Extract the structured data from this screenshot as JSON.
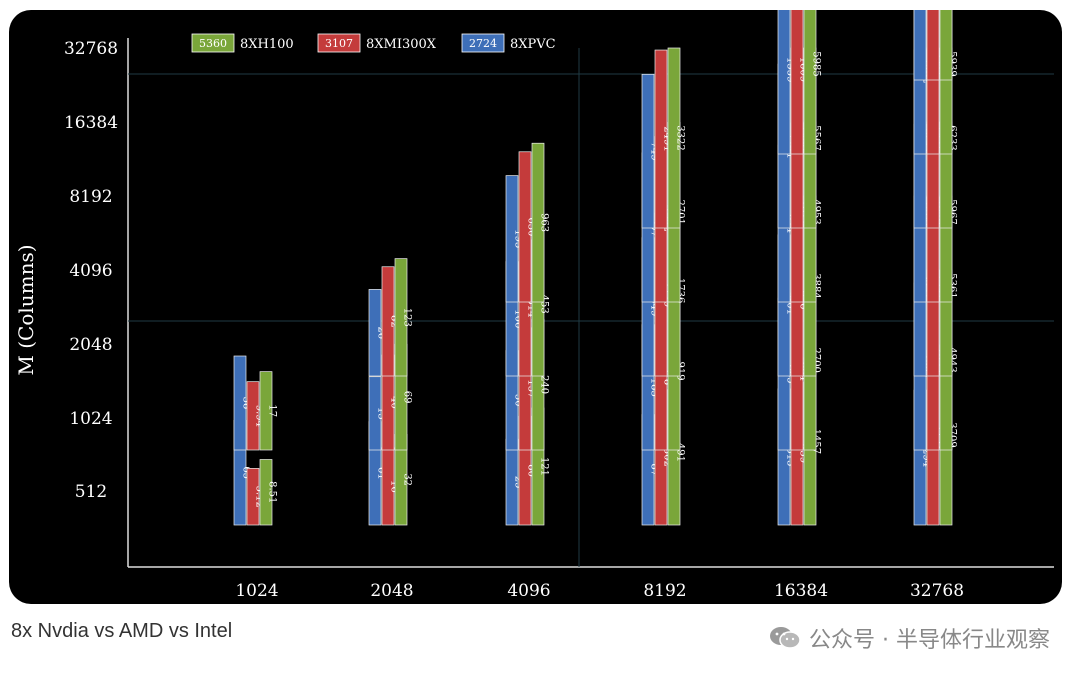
{
  "caption": "8x Nvdia vs AMD vs Intel",
  "watermark": "公众号 · 半导体行业观察",
  "colors": {
    "h100": "#7aa63a",
    "mi300x": "#c43b3b",
    "pvc": "#3e6fb8",
    "background": "#000000"
  },
  "chart_data": {
    "type": "bar",
    "xlabel": "",
    "ylabel": "M (Columns)",
    "x_ticks": [
      "1024",
      "2048",
      "4096",
      "8192",
      "16384",
      "32768"
    ],
    "y_ticks": [
      "512",
      "1024",
      "2048",
      "4096",
      "8192",
      "16384",
      "32768"
    ],
    "y_scale": "log2",
    "legend": [
      {
        "key": "h100",
        "name": "8XH100",
        "value": "5360"
      },
      {
        "key": "mi300x",
        "name": "8XMI300X",
        "value": "3107"
      },
      {
        "key": "pvc",
        "name": "8XPVC",
        "value": "2724"
      }
    ],
    "cells": [
      {
        "x": "1024",
        "y": "512",
        "pvc": "65",
        "mi300x": "5.12",
        "h100": "8.51"
      },
      {
        "x": "1024",
        "y": "1024",
        "pvc": "38",
        "mi300x": "9.94",
        "h100": "17"
      },
      {
        "x": "2048",
        "y": "512",
        "pvc": "61",
        "mi300x": "16",
        "h100": "32"
      },
      {
        "x": "2048",
        "y": "1024",
        "pvc": "13",
        "mi300x": "40",
        "h100": "69"
      },
      {
        "x": "2048",
        "y": "2048",
        "pvc": "26",
        "mi300x": "82",
        "h100": "123"
      },
      {
        "x": "4096",
        "y": "512",
        "pvc": "25",
        "mi300x": "80",
        "h100": "121"
      },
      {
        "x": "4096",
        "y": "1024",
        "pvc": "50",
        "mi300x": "157",
        "h100": "240"
      },
      {
        "x": "4096",
        "y": "2048",
        "pvc": "106",
        "mi300x": "314",
        "h100": "453"
      },
      {
        "x": "4096",
        "y": "4096",
        "pvc": "193",
        "mi300x": "630",
        "h100": "963"
      },
      {
        "x": "8192",
        "y": "512",
        "pvc": "87",
        "mi300x": "302",
        "h100": "491"
      },
      {
        "x": "8192",
        "y": "1024",
        "pvc": "183",
        "mi300x": "578",
        "h100": "919"
      },
      {
        "x": "8192",
        "y": "2048",
        "pvc": "349",
        "mi300x": "1179",
        "h100": "1736"
      },
      {
        "x": "8192",
        "y": "4096",
        "pvc": "597",
        "mi300x": "1342",
        "h100": "2701"
      },
      {
        "x": "8192",
        "y": "8192",
        "pvc": "749",
        "mi300x": "2491",
        "h100": "3322"
      },
      {
        "x": "16384",
        "y": "512",
        "pvc": "313",
        "mi300x": "439",
        "h100": "1457"
      },
      {
        "x": "16384",
        "y": "1024",
        "pvc": "685",
        "mi300x": "884",
        "h100": "2700"
      },
      {
        "x": "16384",
        "y": "2048",
        "pvc": "401",
        "mi300x": "696",
        "h100": "3884"
      },
      {
        "x": "16384",
        "y": "4096",
        "pvc": "874",
        "mi300x": "2621",
        "h100": "4953"
      },
      {
        "x": "16384",
        "y": "8192",
        "pvc": "1241",
        "mi300x": "2906",
        "h100": "5567"
      },
      {
        "x": "16384",
        "y": "16384",
        "pvc": "1559",
        "mi300x": "1609",
        "h100": "5985"
      },
      {
        "x": "32768",
        "y": "512",
        "pvc": "294",
        "mi300x": "2131",
        "h100": "3709"
      },
      {
        "x": "32768",
        "y": "1024",
        "pvc": "1447",
        "mi300x": "2855",
        "h100": "4943"
      },
      {
        "x": "32768",
        "y": "2048",
        "pvc": "3032",
        "mi300x": "2591",
        "h100": "5361"
      },
      {
        "x": "32768",
        "y": "4096",
        "pvc": "2460",
        "mi300x": "2840",
        "h100": "5967"
      },
      {
        "x": "32768",
        "y": "8192",
        "pvc": "2495",
        "mi300x": "2931",
        "h100": "6233"
      },
      {
        "x": "32768",
        "y": "16384",
        "pvc": "1402",
        "mi300x": "3541",
        "h100": "5939"
      },
      {
        "x": "32768",
        "y": "32768",
        "pvc": "3097",
        "mi300x": "4309",
        "h100": "5663"
      }
    ]
  }
}
